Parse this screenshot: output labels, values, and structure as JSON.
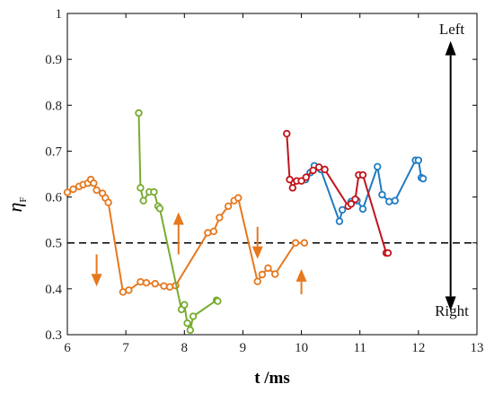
{
  "chart_data": {
    "type": "line",
    "title": "",
    "xlabel": "t /ms",
    "ylabel_main": "η",
    "ylabel_sub": "F",
    "xlim": [
      6,
      13
    ],
    "ylim": [
      0.3,
      1.0
    ],
    "xticks": [
      "6",
      "7",
      "8",
      "9",
      "10",
      "11",
      "12",
      "13"
    ],
    "yticks": [
      "0.3",
      "0.4",
      "0.5",
      "0.6",
      "0.7",
      "0.8",
      "0.9",
      "1"
    ],
    "reference_line": {
      "y": 0.5,
      "style": "dashed"
    },
    "annotations": {
      "top": "Left",
      "bottom": "Right"
    },
    "grid": false,
    "legend": "none",
    "series": [
      {
        "color": "#E6781E",
        "points": [
          [
            6.0,
            0.61
          ],
          [
            6.1,
            0.617
          ],
          [
            6.2,
            0.623
          ],
          [
            6.27,
            0.627
          ],
          [
            6.35,
            0.63
          ],
          [
            6.4,
            0.638
          ],
          [
            6.45,
            0.63
          ],
          [
            6.5,
            0.615
          ],
          [
            6.6,
            0.608
          ],
          [
            6.65,
            0.598
          ],
          [
            6.7,
            0.588
          ],
          [
            6.95,
            0.393
          ],
          [
            7.05,
            0.397
          ],
          [
            7.25,
            0.415
          ],
          [
            7.35,
            0.413
          ],
          [
            7.5,
            0.411
          ],
          [
            7.65,
            0.406
          ],
          [
            7.75,
            0.404
          ],
          [
            7.85,
            0.407
          ],
          [
            8.4,
            0.522
          ],
          [
            8.5,
            0.525
          ],
          [
            8.6,
            0.555
          ],
          [
            8.75,
            0.58
          ],
          [
            8.85,
            0.592
          ],
          [
            8.92,
            0.598
          ],
          [
            9.25,
            0.416
          ],
          [
            9.33,
            0.431
          ],
          [
            9.43,
            0.445
          ],
          [
            9.55,
            0.432
          ],
          [
            9.9,
            0.5
          ],
          [
            10.05,
            0.5
          ]
        ]
      },
      {
        "color": "#77AC30",
        "points": [
          [
            7.22,
            0.783
          ],
          [
            7.25,
            0.62
          ],
          [
            7.3,
            0.592
          ],
          [
            7.4,
            0.611
          ],
          [
            7.48,
            0.611
          ],
          [
            7.55,
            0.58
          ],
          [
            7.58,
            0.575
          ],
          [
            7.95,
            0.355
          ],
          [
            8.0,
            0.365
          ],
          [
            8.05,
            0.325
          ],
          [
            8.1,
            0.31
          ],
          [
            8.15,
            0.34
          ],
          [
            8.55,
            0.375
          ],
          [
            8.57,
            0.373
          ]
        ]
      },
      {
        "color": "#1F7BC2",
        "points": [
          [
            10.07,
            0.638
          ],
          [
            10.15,
            0.653
          ],
          [
            10.22,
            0.668
          ],
          [
            10.33,
            0.66
          ],
          [
            10.65,
            0.547
          ],
          [
            10.7,
            0.572
          ],
          [
            10.85,
            0.59
          ],
          [
            10.95,
            0.592
          ],
          [
            11.05,
            0.574
          ],
          [
            11.3,
            0.666
          ],
          [
            11.38,
            0.605
          ],
          [
            11.5,
            0.59
          ],
          [
            11.6,
            0.592
          ],
          [
            11.95,
            0.68
          ],
          [
            12.0,
            0.68
          ],
          [
            12.05,
            0.642
          ],
          [
            12.08,
            0.64
          ]
        ]
      },
      {
        "color": "#C0141B",
        "points": [
          [
            9.75,
            0.738
          ],
          [
            9.8,
            0.638
          ],
          [
            9.85,
            0.62
          ],
          [
            9.92,
            0.635
          ],
          [
            10.0,
            0.635
          ],
          [
            10.08,
            0.643
          ],
          [
            10.2,
            0.658
          ],
          [
            10.3,
            0.665
          ],
          [
            10.4,
            0.66
          ],
          [
            10.8,
            0.58
          ],
          [
            10.85,
            0.585
          ],
          [
            10.92,
            0.595
          ],
          [
            10.98,
            0.648
          ],
          [
            11.05,
            0.648
          ],
          [
            11.45,
            0.478
          ],
          [
            11.48,
            0.478
          ]
        ]
      }
    ],
    "arrows": [
      {
        "x": 6.5,
        "y_from": 0.475,
        "y_to": 0.405,
        "color": "#E6781E"
      },
      {
        "x": 7.9,
        "y_from": 0.475,
        "y_to": 0.567,
        "color": "#E6781E"
      },
      {
        "x": 9.25,
        "y_from": 0.535,
        "y_to": 0.465,
        "color": "#E6781E"
      },
      {
        "x": 10.0,
        "y_from": 0.388,
        "y_to": 0.443,
        "color": "#E6781E"
      }
    ],
    "double_arrow": {
      "x": 12.55,
      "y_top": 0.94,
      "y_bottom": 0.352,
      "color": "#000000"
    }
  }
}
